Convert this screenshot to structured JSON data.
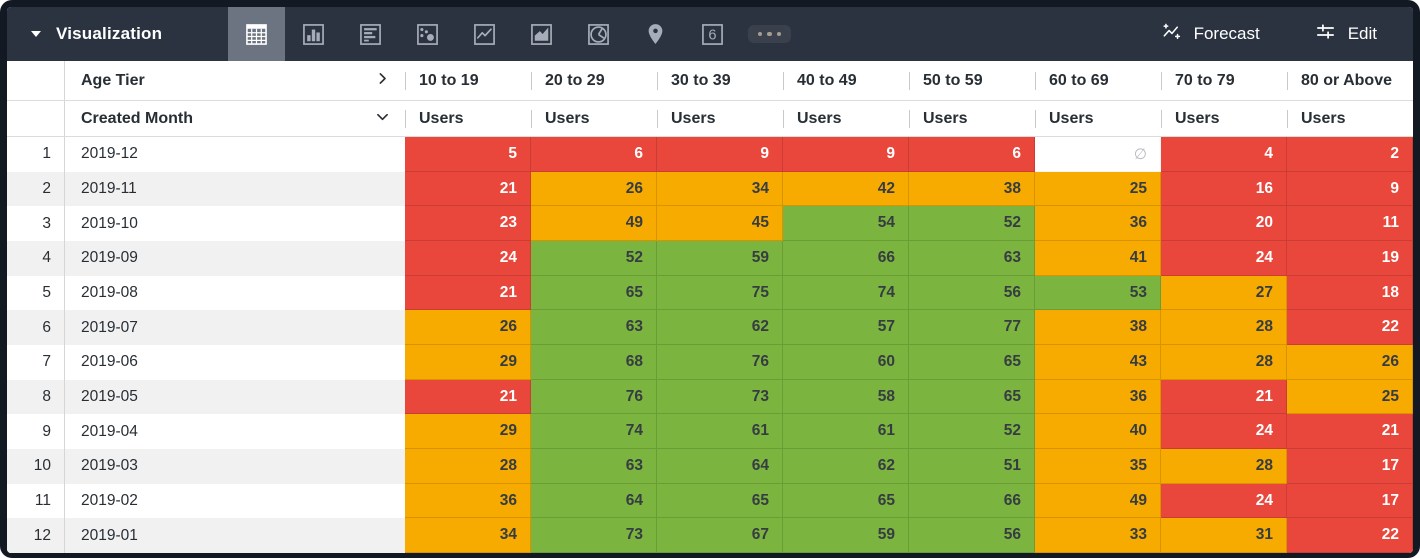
{
  "toolbar": {
    "panel_label": "Visualization",
    "viz_types": [
      {
        "name": "table",
        "selected": true
      },
      {
        "name": "bar-chart",
        "selected": false
      },
      {
        "name": "row-chart",
        "selected": false
      },
      {
        "name": "scatter-plot",
        "selected": false
      },
      {
        "name": "line-chart",
        "selected": false
      },
      {
        "name": "area-chart",
        "selected": false
      },
      {
        "name": "pie-chart",
        "selected": false
      },
      {
        "name": "map",
        "selected": false
      },
      {
        "name": "single-value",
        "selected": false
      },
      {
        "name": "more",
        "selected": false
      }
    ],
    "single_value_glyph": "6",
    "forecast_label": "Forecast",
    "edit_label": "Edit"
  },
  "table": {
    "pivot_field": "Age Tier",
    "dimension_field": "Created Month",
    "measure_label": "Users",
    "empty_symbol": "∅",
    "columns": [
      "10 to 19",
      "20 to 29",
      "30 to 39",
      "40 to 49",
      "50 to 59",
      "60 to 69",
      "70 to 79",
      "80 or Above"
    ],
    "rows": [
      {
        "n": "1",
        "month": "2019-12",
        "values": [
          "5",
          "6",
          "9",
          "9",
          "6",
          "∅",
          "4",
          "2"
        ],
        "colors": [
          "r",
          "r",
          "r",
          "r",
          "r",
          "n",
          "r",
          "r"
        ]
      },
      {
        "n": "2",
        "month": "2019-11",
        "values": [
          "21",
          "26",
          "34",
          "42",
          "38",
          "25",
          "16",
          "9"
        ],
        "colors": [
          "r",
          "o",
          "o",
          "o",
          "o",
          "o",
          "r",
          "r"
        ]
      },
      {
        "n": "3",
        "month": "2019-10",
        "values": [
          "23",
          "49",
          "45",
          "54",
          "52",
          "36",
          "20",
          "11"
        ],
        "colors": [
          "r",
          "o",
          "o",
          "g",
          "g",
          "o",
          "r",
          "r"
        ]
      },
      {
        "n": "4",
        "month": "2019-09",
        "values": [
          "24",
          "52",
          "59",
          "66",
          "63",
          "41",
          "24",
          "19"
        ],
        "colors": [
          "r",
          "g",
          "g",
          "g",
          "g",
          "o",
          "r",
          "r"
        ]
      },
      {
        "n": "5",
        "month": "2019-08",
        "values": [
          "21",
          "65",
          "75",
          "74",
          "56",
          "53",
          "27",
          "18"
        ],
        "colors": [
          "r",
          "g",
          "g",
          "g",
          "g",
          "g",
          "o",
          "r"
        ]
      },
      {
        "n": "6",
        "month": "2019-07",
        "values": [
          "26",
          "63",
          "62",
          "57",
          "77",
          "38",
          "28",
          "22"
        ],
        "colors": [
          "o",
          "g",
          "g",
          "g",
          "g",
          "o",
          "o",
          "r"
        ]
      },
      {
        "n": "7",
        "month": "2019-06",
        "values": [
          "29",
          "68",
          "76",
          "60",
          "65",
          "43",
          "28",
          "26"
        ],
        "colors": [
          "o",
          "g",
          "g",
          "g",
          "g",
          "o",
          "o",
          "o"
        ]
      },
      {
        "n": "8",
        "month": "2019-05",
        "values": [
          "21",
          "76",
          "73",
          "58",
          "65",
          "36",
          "21",
          "25"
        ],
        "colors": [
          "r",
          "g",
          "g",
          "g",
          "g",
          "o",
          "r",
          "o"
        ]
      },
      {
        "n": "9",
        "month": "2019-04",
        "values": [
          "29",
          "74",
          "61",
          "61",
          "52",
          "40",
          "24",
          "21"
        ],
        "colors": [
          "o",
          "g",
          "g",
          "g",
          "g",
          "o",
          "r",
          "r"
        ]
      },
      {
        "n": "10",
        "month": "2019-03",
        "values": [
          "28",
          "63",
          "64",
          "62",
          "51",
          "35",
          "28",
          "17"
        ],
        "colors": [
          "o",
          "g",
          "g",
          "g",
          "g",
          "o",
          "o",
          "r"
        ]
      },
      {
        "n": "11",
        "month": "2019-02",
        "values": [
          "36",
          "64",
          "65",
          "65",
          "66",
          "49",
          "24",
          "17"
        ],
        "colors": [
          "o",
          "g",
          "g",
          "g",
          "g",
          "o",
          "r",
          "r"
        ]
      },
      {
        "n": "12",
        "month": "2019-01",
        "values": [
          "34",
          "73",
          "67",
          "59",
          "56",
          "33",
          "31",
          "22"
        ],
        "colors": [
          "o",
          "g",
          "g",
          "g",
          "g",
          "o",
          "o",
          "r"
        ]
      }
    ]
  },
  "colors": {
    "cells": {
      "r": "#e9473c",
      "o": "#f7ab00",
      "g": "#7bb53f",
      "n": "#ffffff"
    },
    "toolbar_bg": "#2b3340",
    "toolbar_selected_bg": "#6b7480",
    "frame": "#131922"
  }
}
